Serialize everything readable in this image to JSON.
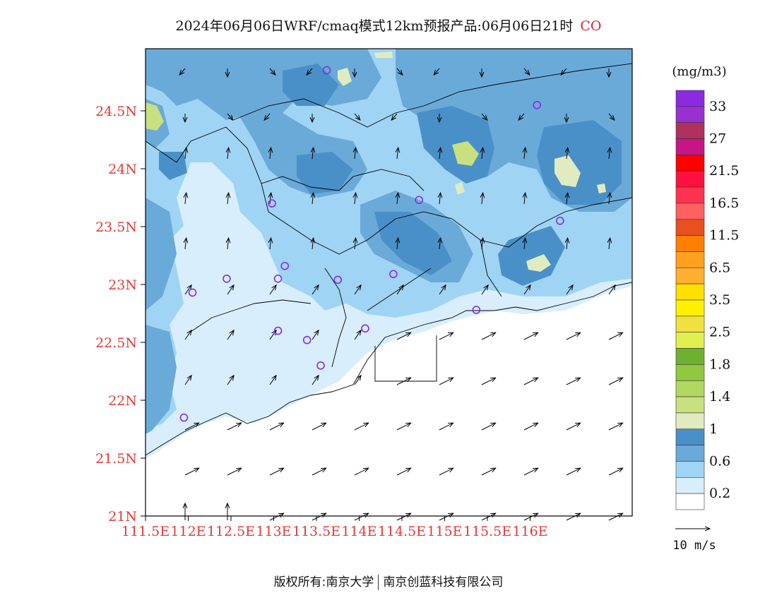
{
  "title": {
    "text": "2024年06月06日WRF/cmaq模式12km预报产品:06月06日21时",
    "pollutant": "CO",
    "pollutant_color": "#e0203a"
  },
  "map": {
    "lat_labels": [
      "24.5N",
      "24N",
      "23.5N",
      "23N",
      "22.5N",
      "22N",
      "21.5N",
      "21N"
    ],
    "lon_labels": [
      "111.5E",
      "112E",
      "112.5E",
      "113E",
      "113.5E",
      "114E",
      "114.5E",
      "115E",
      "115.5E",
      "116E"
    ],
    "axis_label_color": "#e03a3a"
  },
  "legend": {
    "unit": "(mg/m3)",
    "labels": [
      "33",
      "27",
      "21.5",
      "16.5",
      "11.5",
      "6.5",
      "3.5",
      "2.5",
      "1.8",
      "1.4",
      "1",
      "0.6",
      "0.2"
    ],
    "colors_top_to_bottom": [
      "#8a2be2",
      "#9b30d0",
      "#b03060",
      "#c71585",
      "#ff0000",
      "#ff1040",
      "#ff3350",
      "#ff6060",
      "#e85020",
      "#ff8000",
      "#ffa020",
      "#ffb030",
      "#ffe000",
      "#fff000",
      "#f0e040",
      "#e0f050",
      "#70b030",
      "#90c840",
      "#b0d860",
      "#c8e080",
      "#e0ecc0",
      "#4a90c8",
      "#6aaad8",
      "#a0d4f4",
      "#d8eefc",
      "#ffffff"
    ],
    "wind_scale_label": "10 m/s"
  },
  "cities": [
    {
      "lon": 113.62,
      "lat": 24.85
    },
    {
      "lon": 116.08,
      "lat": 24.55
    },
    {
      "lon": 112.98,
      "lat": 23.7
    },
    {
      "lon": 114.7,
      "lat": 23.73
    },
    {
      "lon": 116.35,
      "lat": 23.55
    },
    {
      "lon": 113.13,
      "lat": 23.16
    },
    {
      "lon": 112.45,
      "lat": 23.05
    },
    {
      "lon": 113.05,
      "lat": 23.05
    },
    {
      "lon": 113.75,
      "lat": 23.04
    },
    {
      "lon": 114.4,
      "lat": 23.09
    },
    {
      "lon": 112.05,
      "lat": 22.93
    },
    {
      "lon": 115.37,
      "lat": 22.78
    },
    {
      "lon": 113.05,
      "lat": 22.6
    },
    {
      "lon": 113.39,
      "lat": 22.52
    },
    {
      "lon": 114.07,
      "lat": 22.62
    },
    {
      "lon": 113.55,
      "lat": 22.3
    },
    {
      "lon": 111.95,
      "lat": 21.85
    }
  ],
  "footer": {
    "left": "版权所有:南京大学",
    "right": "南京创蓝科技有限公司"
  }
}
